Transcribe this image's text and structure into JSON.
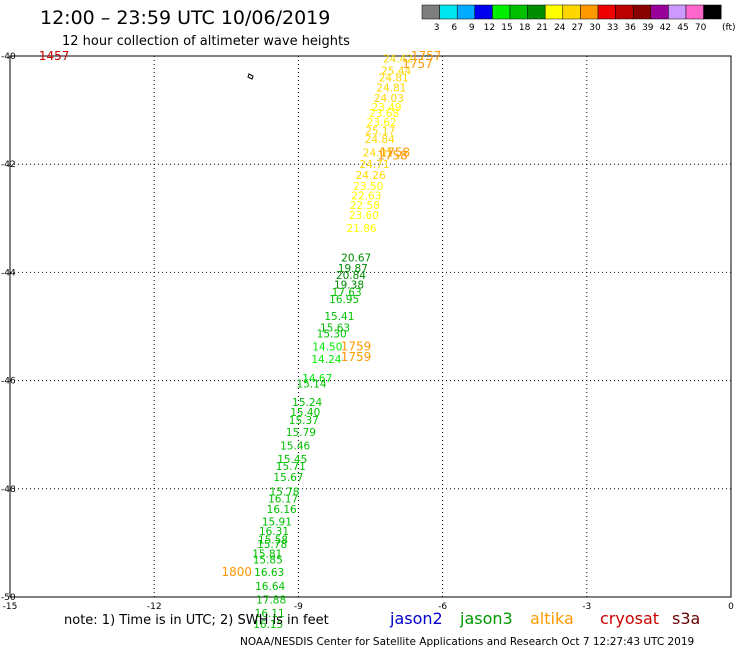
{
  "header": {
    "title": "12:00 – 23:59 UTC 10/06/2019",
    "subtitle": "12 hour collection of altimeter wave heights"
  },
  "colorbar": {
    "unit": "(ft)",
    "bins": [
      {
        "label": "3",
        "color": "#7f7f7f"
      },
      {
        "label": "6",
        "color": "#00e5ee"
      },
      {
        "label": "9",
        "color": "#00aaff"
      },
      {
        "label": "12",
        "color": "#0000ee"
      },
      {
        "label": "15",
        "color": "#00ee00"
      },
      {
        "label": "18",
        "color": "#00c000"
      },
      {
        "label": "21",
        "color": "#008c00"
      },
      {
        "label": "24",
        "color": "#ffff00"
      },
      {
        "label": "27",
        "color": "#ffd700"
      },
      {
        "label": "30",
        "color": "#ff9900"
      },
      {
        "label": "33",
        "color": "#ee0000"
      },
      {
        "label": "36",
        "color": "#bb0000"
      },
      {
        "label": "39",
        "color": "#880000"
      },
      {
        "label": "42",
        "color": "#990099"
      },
      {
        "label": "45",
        "color": "#cc99ff"
      },
      {
        "label": "70",
        "color": "#ff66cc"
      },
      {
        "label": "",
        "color": "#000000"
      }
    ]
  },
  "footer": {
    "note": "note:  1) Time is in UTC;  2) SWH is in feet",
    "credit": "NOAA/NESDIS Center for Satellite Applications and Research    Oct  7 12:27:43 UTC 2019",
    "satellites": [
      {
        "name": "jason2",
        "color": "#0000cc"
      },
      {
        "name": "jason3",
        "color": "#009900"
      },
      {
        "name": "altika",
        "color": "#ff9900"
      },
      {
        "name": "cryosat",
        "color": "#cc0000"
      },
      {
        "name": "s3a",
        "color": "#660000"
      }
    ]
  },
  "chart_data": {
    "type": "scatter",
    "title": "12:00 – 23:59 UTC 10/06/2019",
    "subtitle": "12 hour collection of altimeter wave heights",
    "xlim": [
      -15,
      0
    ],
    "ylim": [
      -50,
      -40
    ],
    "x_ticks": [
      "-15",
      "-12",
      "-9",
      "-6",
      "-3",
      "0"
    ],
    "x_tick_values": [
      -15,
      -12,
      -9,
      -6,
      -3,
      0
    ],
    "y_ticks": [
      "-40",
      "-42",
      "-44",
      "-46",
      "-48",
      "-50"
    ],
    "y_tick_values": [
      -40,
      -42,
      -44,
      -46,
      -48,
      -50
    ],
    "grid": true,
    "swh_points": [
      {
        "lon": -7.24,
        "lat": -40.05,
        "value": "24.42"
      },
      {
        "lon": -7.28,
        "lat": -40.27,
        "value": "25.44"
      },
      {
        "lon": -7.33,
        "lat": -40.4,
        "value": "24.81"
      },
      {
        "lon": -7.38,
        "lat": -40.58,
        "value": "24.81"
      },
      {
        "lon": -7.43,
        "lat": -40.78,
        "value": "24.03"
      },
      {
        "lon": -7.48,
        "lat": -40.94,
        "value": "23.49"
      },
      {
        "lon": -7.53,
        "lat": -41.05,
        "value": "23.68"
      },
      {
        "lon": -7.58,
        "lat": -41.22,
        "value": "23.62"
      },
      {
        "lon": -7.61,
        "lat": -41.38,
        "value": "25.17"
      },
      {
        "lon": -7.62,
        "lat": -41.53,
        "value": "24.84"
      },
      {
        "lon": -7.66,
        "lat": -41.78,
        "value": "24.01"
      },
      {
        "lon": -7.73,
        "lat": -42.0,
        "value": "24.71"
      },
      {
        "lon": -7.81,
        "lat": -42.2,
        "value": "24.26"
      },
      {
        "lon": -7.86,
        "lat": -42.4,
        "value": "23.50"
      },
      {
        "lon": -7.9,
        "lat": -42.58,
        "value": "22.63"
      },
      {
        "lon": -7.93,
        "lat": -42.75,
        "value": "22.58"
      },
      {
        "lon": -7.95,
        "lat": -42.94,
        "value": "23.60"
      },
      {
        "lon": -8.0,
        "lat": -43.18,
        "value": "21.86"
      },
      {
        "lon": -8.11,
        "lat": -43.72,
        "value": "20.67"
      },
      {
        "lon": -8.18,
        "lat": -43.92,
        "value": "19.87"
      },
      {
        "lon": -8.22,
        "lat": -44.05,
        "value": "20.84"
      },
      {
        "lon": -8.26,
        "lat": -44.22,
        "value": "19.38"
      },
      {
        "lon": -8.31,
        "lat": -44.36,
        "value": "17.63"
      },
      {
        "lon": -8.36,
        "lat": -44.49,
        "value": "16.95"
      },
      {
        "lon": -8.46,
        "lat": -44.81,
        "value": "15.41"
      },
      {
        "lon": -8.55,
        "lat": -45.02,
        "value": "15.63"
      },
      {
        "lon": -8.62,
        "lat": -45.13,
        "value": "15.30"
      },
      {
        "lon": -8.71,
        "lat": -45.37,
        "value": "14.50"
      },
      {
        "lon": -8.73,
        "lat": -45.6,
        "value": "14.24"
      },
      {
        "lon": -8.92,
        "lat": -45.95,
        "value": "14.67"
      },
      {
        "lon": -9.04,
        "lat": -46.05,
        "value": "15.14"
      },
      {
        "lon": -9.13,
        "lat": -46.4,
        "value": "15.24"
      },
      {
        "lon": -9.17,
        "lat": -46.58,
        "value": "15.40"
      },
      {
        "lon": -9.2,
        "lat": -46.73,
        "value": "15.37"
      },
      {
        "lon": -9.26,
        "lat": -46.95,
        "value": "15.79"
      },
      {
        "lon": -9.38,
        "lat": -47.2,
        "value": "15.46"
      },
      {
        "lon": -9.44,
        "lat": -47.45,
        "value": "15.45"
      },
      {
        "lon": -9.47,
        "lat": -47.58,
        "value": "15.71"
      },
      {
        "lon": -9.52,
        "lat": -47.78,
        "value": "15.67"
      },
      {
        "lon": -9.6,
        "lat": -48.05,
        "value": "15.78"
      },
      {
        "lon": -9.63,
        "lat": -48.18,
        "value": "16.17"
      },
      {
        "lon": -9.66,
        "lat": -48.37,
        "value": "16.16"
      },
      {
        "lon": -9.76,
        "lat": -48.6,
        "value": "15.91"
      },
      {
        "lon": -9.82,
        "lat": -48.78,
        "value": "16.31"
      },
      {
        "lon": -9.84,
        "lat": -48.94,
        "value": "15.58"
      },
      {
        "lon": -9.86,
        "lat": -49.02,
        "value": "15.78"
      },
      {
        "lon": -9.96,
        "lat": -49.2,
        "value": "15.81"
      },
      {
        "lon": -9.95,
        "lat": -49.31,
        "value": "15.85"
      },
      {
        "lon": -9.92,
        "lat": -49.54,
        "value": "16.63"
      },
      {
        "lon": -9.9,
        "lat": -49.8,
        "value": "16.64"
      },
      {
        "lon": -9.88,
        "lat": -50.05,
        "value": "17.88"
      },
      {
        "lon": -9.91,
        "lat": -50.3,
        "value": "16.11"
      },
      {
        "lon": -9.94,
        "lat": -50.5,
        "value": "16.15"
      }
    ],
    "time_labels": [
      {
        "lon": -6.66,
        "lat": -40.0,
        "value": "1757"
      },
      {
        "lon": -6.84,
        "lat": -40.15,
        "value": "1757"
      },
      {
        "lon": -7.31,
        "lat": -41.78,
        "value": "1758"
      },
      {
        "lon": -7.36,
        "lat": -41.84,
        "value": "1758"
      },
      {
        "lon": -8.12,
        "lat": -45.37,
        "value": "1759"
      },
      {
        "lon": -8.12,
        "lat": -45.56,
        "value": "1759"
      },
      {
        "lon": -10.6,
        "lat": -49.54,
        "value": "1800"
      }
    ],
    "corner_labels": [
      {
        "lon": -14.4,
        "lat": -40.0,
        "value": "1457"
      }
    ]
  }
}
